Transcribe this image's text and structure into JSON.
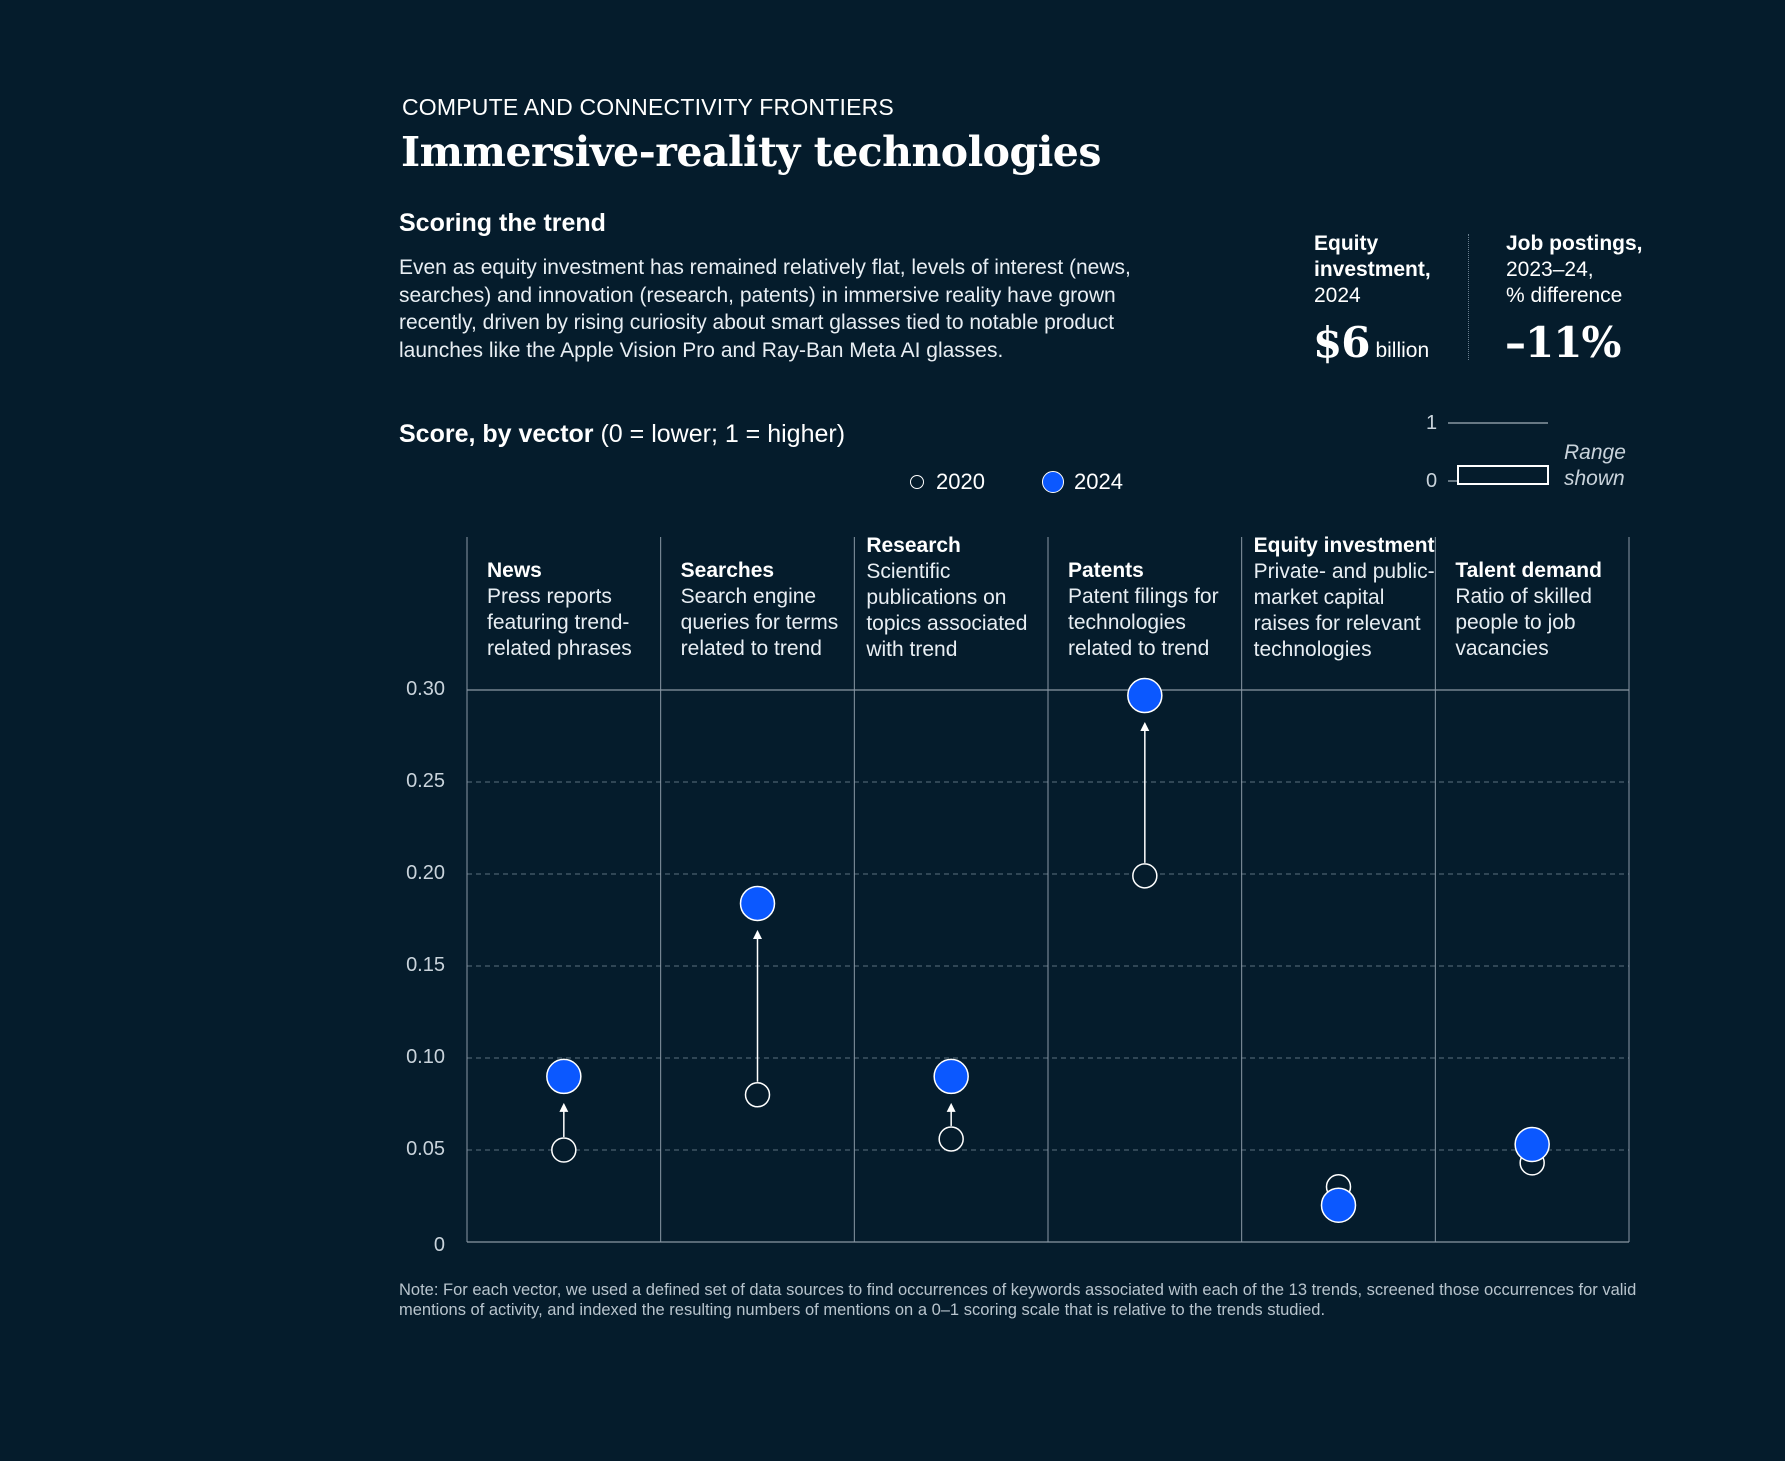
{
  "header": {
    "eyebrow": "COMPUTE AND CONNECTIVITY FRONTIERS",
    "title": "Immersive-reality technologies"
  },
  "summary": {
    "heading": "Scoring the trend",
    "text": "Even as equity investment has remained relatively flat, levels of interest (news, searches) and innovation (research, patents) in immersive reality have grown recently, driven by rising curiosity about smart glasses tied to notable product launches like the Apple Vision Pro and Ray-Ban Meta AI glasses."
  },
  "kpis": {
    "equity": {
      "label_line1": "Equity",
      "label_line2": "investment,",
      "label_line3": "2024",
      "value": "$6",
      "unit": "billion"
    },
    "jobs": {
      "label_line1": "Job postings,",
      "label_line2": "2023–24,",
      "label_line3": "% difference",
      "value": "–11%"
    }
  },
  "score_label": {
    "bold": "Score, by vector",
    "rest": " (0 = lower; 1 = higher)"
  },
  "legend": {
    "y2020": "2020",
    "y2024": "2024"
  },
  "range_key": {
    "top": "1",
    "bottom": "0",
    "note_line1": "Range",
    "note_line2": "shown"
  },
  "colors": {
    "background": "#051c2c",
    "accent_2024": "#0b58ff",
    "line": "#ffffff",
    "grid": "#5b6f7e"
  },
  "chart_data": {
    "type": "scatter",
    "ylim": [
      0,
      0.3
    ],
    "yticks": [
      "0",
      "0.05",
      "0.10",
      "0.15",
      "0.20",
      "0.25",
      "0.30"
    ],
    "ytick_values": [
      0,
      0.05,
      0.1,
      0.15,
      0.2,
      0.25,
      0.3
    ],
    "categories": [
      {
        "title": "News",
        "desc": [
          "Press reports",
          "featuring trend-",
          "related phrases"
        ],
        "v2020": 0.05,
        "v2024": 0.09
      },
      {
        "title": "Searches",
        "desc": [
          "Search engine",
          "queries for terms",
          "related to trend"
        ],
        "v2020": 0.08,
        "v2024": 0.184
      },
      {
        "title": "Research",
        "desc": [
          "Scientific",
          "publications on",
          "topics associated",
          "with trend"
        ],
        "v2020": 0.056,
        "v2024": 0.09
      },
      {
        "title": "Patents",
        "desc": [
          "Patent filings for",
          "technologies",
          "related to trend"
        ],
        "v2020": 0.199,
        "v2024": 0.297
      },
      {
        "title": "Equity investment",
        "desc": [
          "Private- and public-",
          "market capital",
          "raises for relevant",
          "technologies"
        ],
        "v2020": 0.03,
        "v2024": 0.02
      },
      {
        "title": "Talent demand",
        "desc": [
          "Ratio of skilled",
          "people to job",
          "vacancies"
        ],
        "v2020": 0.043,
        "v2024": 0.053
      }
    ],
    "series": [
      {
        "name": "2020"
      },
      {
        "name": "2024"
      }
    ]
  },
  "note": "Note: For each vector, we used a defined set of data sources to find occurrences of keywords associated with each of the 13 trends, screened those occurrences for valid mentions of activity, and indexed the resulting numbers of mentions on a 0–1 scoring scale that is relative to the trends studied."
}
